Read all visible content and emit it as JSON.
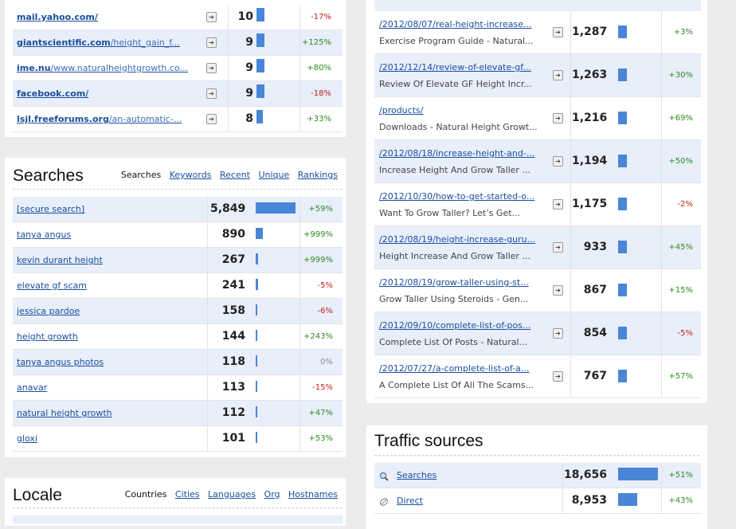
{
  "referrers": {
    "rows": [
      {
        "domain": "mail.yahoo.com/",
        "path": "",
        "count": "10",
        "bar": 0.19,
        "change": "-17%",
        "trend": "neg"
      },
      {
        "domain": "giantscientific.com",
        "path": "/height_gain_f...",
        "count": "9",
        "bar": 0.19,
        "change": "+125%",
        "trend": "pos"
      },
      {
        "domain": "ime.nu",
        "path": "/www.naturalheightgrowth.co...",
        "count": "9",
        "bar": 0.19,
        "change": "+80%",
        "trend": "pos"
      },
      {
        "domain": "facebook.com/",
        "path": "",
        "count": "9",
        "bar": 0.19,
        "change": "-18%",
        "trend": "neg"
      },
      {
        "domain": "lsjl.freeforums.org",
        "path": "/an-automatic-...",
        "count": "8",
        "bar": 0.16,
        "change": "+33%",
        "trend": "pos"
      }
    ]
  },
  "searches": {
    "title": "Searches",
    "tabs": {
      "active": "Searches",
      "links": [
        "Keywords",
        "Recent",
        "Unique",
        "Rankings"
      ]
    },
    "rows": [
      {
        "term": "[secure search]",
        "count": "5,849",
        "bar": 1.0,
        "change": "+59%",
        "trend": "pos"
      },
      {
        "term": "tanya angus",
        "count": "890",
        "bar": 0.18,
        "change": "+999%",
        "trend": "pos"
      },
      {
        "term": "kevin durant height",
        "count": "267",
        "bar": 0.06,
        "change": "+999%",
        "trend": "pos"
      },
      {
        "term": "elevate gf scam",
        "count": "241",
        "bar": 0.05,
        "change": "-5%",
        "trend": "neg"
      },
      {
        "term": "jessica pardoe",
        "count": "158",
        "bar": 0.04,
        "change": "-6%",
        "trend": "neg"
      },
      {
        "term": "height growth",
        "count": "144",
        "bar": 0.04,
        "change": "+243%",
        "trend": "pos"
      },
      {
        "term": "tanya angus photos",
        "count": "118",
        "bar": 0.03,
        "change": "0%",
        "trend": "neu"
      },
      {
        "term": "anavar",
        "count": "113",
        "bar": 0.03,
        "change": "-15%",
        "trend": "neg"
      },
      {
        "term": "natural height growth",
        "count": "112",
        "bar": 0.03,
        "change": "+47%",
        "trend": "pos"
      },
      {
        "term": "gloxi",
        "count": "101",
        "bar": 0.03,
        "change": "+53%",
        "trend": "pos"
      }
    ]
  },
  "locale": {
    "title": "Locale",
    "tabs": {
      "active": "Countries",
      "links": [
        "Cities",
        "Languages",
        "Org",
        "Hostnames"
      ]
    }
  },
  "content": {
    "rows": [
      {
        "url": "/2012/08/07/real-height-increase...",
        "page_title": "Exercise Program Guide - Natural...",
        "count": "1,287",
        "change": "+3%",
        "trend": "pos"
      },
      {
        "url": "/2012/12/14/review-of-elevate-gf...",
        "page_title": "Review Of Elevate GF Height Incr...",
        "count": "1,263",
        "change": "+30%",
        "trend": "pos"
      },
      {
        "url": "/products/",
        "page_title": "Downloads - Natural Height Growt...",
        "count": "1,216",
        "change": "+69%",
        "trend": "pos"
      },
      {
        "url": "/2012/08/18/increase-height-and-...",
        "page_title": "Increase Height And Grow Taller ...",
        "count": "1,194",
        "change": "+50%",
        "trend": "pos"
      },
      {
        "url": "/2012/10/30/how-to-get-started-o...",
        "page_title": "Want To Grow Taller? Let’s Get...",
        "count": "1,175",
        "change": "-2%",
        "trend": "neg"
      },
      {
        "url": "/2012/08/19/height-increase-guru...",
        "page_title": "Height Increase And Grow Taller ...",
        "count": "933",
        "change": "+45%",
        "trend": "pos"
      },
      {
        "url": "/2012/08/19/grow-taller-using-st...",
        "page_title": "Grow Taller Using Steroids - Gen...",
        "count": "867",
        "change": "+15%",
        "trend": "pos"
      },
      {
        "url": "/2012/09/10/complete-list-of-pos...",
        "page_title": "Complete List Of Posts - Natural...",
        "count": "854",
        "change": "-5%",
        "trend": "neg"
      },
      {
        "url": "/2012/07/27/a-complete-list-of-a...",
        "page_title": "A Complete List Of All The Scams...",
        "count": "767",
        "change": "+57%",
        "trend": "pos"
      }
    ]
  },
  "traffic": {
    "title": "Traffic sources",
    "rows": [
      {
        "label": "Searches",
        "icon": "magnifier-icon",
        "count": "18,656",
        "bar": 1.0,
        "change": "+51%",
        "trend": "pos"
      },
      {
        "label": "Direct",
        "icon": "direct-icon",
        "count": "8,953",
        "bar": 0.48,
        "change": "+43%",
        "trend": "pos"
      }
    ]
  }
}
